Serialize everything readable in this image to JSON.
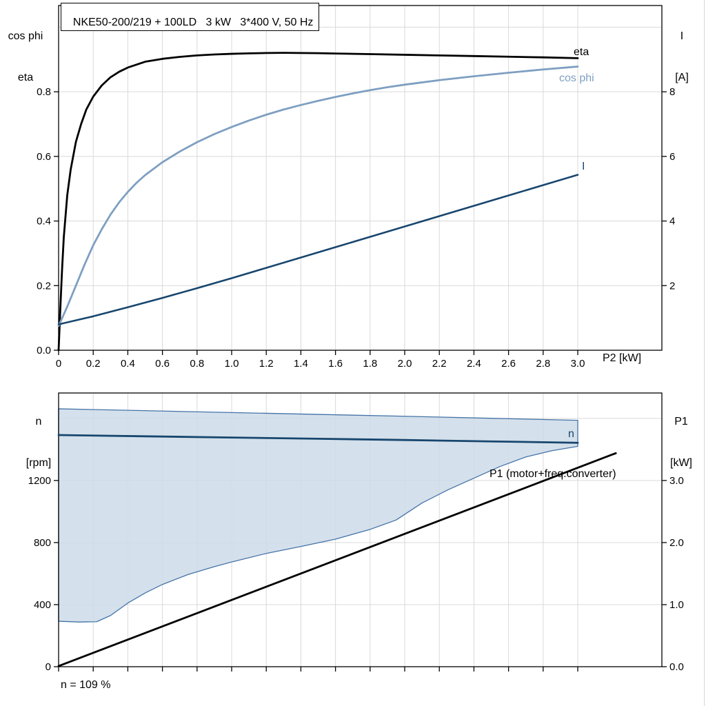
{
  "accent_colors": {
    "dark_blue": "#17466e",
    "light_blue": "#7e9fc1",
    "band_fill": "rgba(204,218,232,0.85)",
    "band_stroke": "#4472a8",
    "grid": "#d9d9d9"
  },
  "chart_data": [
    {
      "type": "line",
      "title": "NKE50-200/219 + 100LD   3 kW   3*400 V, 50 Hz",
      "xlabel": "P2 [kW]",
      "x_axis": {
        "min": 0,
        "max": 3.486,
        "ticks": [
          0,
          0.2,
          0.4,
          0.6,
          0.8,
          1,
          1.2,
          1.4,
          1.6,
          1.8,
          2,
          2.2,
          2.4,
          2.6,
          2.8,
          3
        ],
        "tick_labels": [
          "0",
          "0.2",
          "0.4",
          "0.6",
          "0.8",
          "1.0",
          "1.2",
          "1.4",
          "1.6",
          "1.8",
          "2.0",
          "2.2",
          "2.4",
          "2.6",
          "2.8",
          "3.0"
        ]
      },
      "y_left": {
        "label_line1": "cos phi",
        "label_line2": "eta",
        "min": 0,
        "max": 1.067,
        "ticks": [
          0,
          0.2,
          0.4,
          0.6,
          0.8
        ],
        "tick_labels": [
          "0.0",
          "0.2",
          "0.4",
          "0.6",
          "0.8"
        ],
        "grid_ticks": [
          0.2,
          0.4,
          0.6,
          0.8,
          1.0
        ]
      },
      "y_right": {
        "label_line1": "I",
        "label_line2": "[A]",
        "min": 0,
        "max": 10.67,
        "ticks": [
          2,
          4,
          6,
          8
        ],
        "tick_labels": [
          "2",
          "4",
          "6",
          "8"
        ]
      },
      "series": [
        {
          "name": "eta",
          "label": "eta",
          "axis": "left",
          "color": "#000000",
          "width": 2.8,
          "points": [
            [
              0,
              0
            ],
            [
              0.01,
              0.13
            ],
            [
              0.02,
              0.25
            ],
            [
              0.03,
              0.35
            ],
            [
              0.05,
              0.48
            ],
            [
              0.07,
              0.56
            ],
            [
              0.1,
              0.645
            ],
            [
              0.13,
              0.7
            ],
            [
              0.16,
              0.745
            ],
            [
              0.2,
              0.785
            ],
            [
              0.25,
              0.82
            ],
            [
              0.3,
              0.845
            ],
            [
              0.35,
              0.862
            ],
            [
              0.4,
              0.875
            ],
            [
              0.5,
              0.893
            ],
            [
              0.6,
              0.902
            ],
            [
              0.7,
              0.908
            ],
            [
              0.8,
              0.9125
            ],
            [
              0.9,
              0.9155
            ],
            [
              1.0,
              0.9175
            ],
            [
              1.1,
              0.919
            ],
            [
              1.2,
              0.92
            ],
            [
              1.3,
              0.9205
            ],
            [
              1.4,
              0.92
            ],
            [
              1.5,
              0.9195
            ],
            [
              1.6,
              0.9185
            ],
            [
              1.8,
              0.9165
            ],
            [
              2.0,
              0.9145
            ],
            [
              2.2,
              0.9125
            ],
            [
              2.4,
              0.9105
            ],
            [
              2.6,
              0.9085
            ],
            [
              2.8,
              0.9065
            ],
            [
              3.0,
              0.904
            ]
          ]
        },
        {
          "name": "cos-phi",
          "label": "cos phi",
          "axis": "left",
          "color": "#7e9fc1",
          "width": 2.8,
          "points": [
            [
              0,
              0.075
            ],
            [
              0.05,
              0.135
            ],
            [
              0.1,
              0.2
            ],
            [
              0.15,
              0.265
            ],
            [
              0.2,
              0.325
            ],
            [
              0.25,
              0.375
            ],
            [
              0.3,
              0.42
            ],
            [
              0.35,
              0.458
            ],
            [
              0.4,
              0.49
            ],
            [
              0.45,
              0.518
            ],
            [
              0.5,
              0.542
            ],
            [
              0.6,
              0.582
            ],
            [
              0.7,
              0.615
            ],
            [
              0.8,
              0.644
            ],
            [
              0.9,
              0.669
            ],
            [
              1.0,
              0.691
            ],
            [
              1.1,
              0.711
            ],
            [
              1.2,
              0.729
            ],
            [
              1.3,
              0.745
            ],
            [
              1.4,
              0.759
            ],
            [
              1.5,
              0.772
            ],
            [
              1.6,
              0.784
            ],
            [
              1.7,
              0.795
            ],
            [
              1.8,
              0.805
            ],
            [
              1.9,
              0.814
            ],
            [
              2.0,
              0.822
            ],
            [
              2.2,
              0.836
            ],
            [
              2.4,
              0.848
            ],
            [
              2.6,
              0.859
            ],
            [
              2.8,
              0.869
            ],
            [
              3.0,
              0.878
            ]
          ]
        },
        {
          "name": "current",
          "label": "I",
          "axis": "right",
          "color": "#17466e",
          "width": 2.6,
          "points": [
            [
              0,
              0.8
            ],
            [
              0.2,
              1.05
            ],
            [
              0.4,
              1.33
            ],
            [
              0.6,
              1.62
            ],
            [
              0.8,
              1.92
            ],
            [
              1.0,
              2.23
            ],
            [
              1.2,
              2.55
            ],
            [
              1.4,
              2.87
            ],
            [
              1.6,
              3.19
            ],
            [
              1.8,
              3.51
            ],
            [
              2.0,
              3.83
            ],
            [
              2.2,
              4.15
            ],
            [
              2.4,
              4.47
            ],
            [
              2.6,
              4.79
            ],
            [
              2.8,
              5.11
            ],
            [
              3.0,
              5.43
            ]
          ]
        }
      ]
    },
    {
      "type": "line",
      "xlabel": "",
      "x_axis": {
        "min": 0,
        "max": 3.486,
        "ticks": [
          0,
          0.2,
          0.4,
          0.6,
          0.8,
          1,
          1.2,
          1.4,
          1.6,
          1.8,
          2,
          2.2,
          2.4,
          2.6,
          2.8,
          3
        ],
        "tick_labels": []
      },
      "y_left": {
        "label_line1": "n",
        "label_line2": "[rpm]",
        "min": 0,
        "max": 1764,
        "ticks": [
          0,
          400,
          800,
          1200
        ],
        "tick_labels": [
          "0",
          "400",
          "800",
          "1200"
        ],
        "grid_ticks": [
          400,
          800,
          1200,
          1600
        ]
      },
      "y_right": {
        "label_line1": "P1",
        "label_line2": "[kW]",
        "min": 0,
        "max": 4.41,
        "ticks": [
          0,
          1,
          2,
          3
        ],
        "tick_labels": [
          "0.0",
          "1.0",
          "2.0",
          "3.0"
        ]
      },
      "band": {
        "name": "speed-control-range",
        "fill": "rgba(204,218,232,0.85)",
        "stroke": "#4472a8",
        "upper": [
          [
            0,
            1662
          ],
          [
            0.5,
            1650
          ],
          [
            1.0,
            1638
          ],
          [
            1.5,
            1626
          ],
          [
            2.0,
            1614
          ],
          [
            2.5,
            1601
          ],
          [
            3.0,
            1588
          ]
        ],
        "lower": [
          [
            0,
            293
          ],
          [
            0.12,
            288
          ],
          [
            0.22,
            290
          ],
          [
            0.3,
            330
          ],
          [
            0.4,
            410
          ],
          [
            0.5,
            475
          ],
          [
            0.6,
            530
          ],
          [
            0.75,
            595
          ],
          [
            0.9,
            645
          ],
          [
            1.0,
            675
          ],
          [
            1.2,
            730
          ],
          [
            1.4,
            775
          ],
          [
            1.6,
            822
          ],
          [
            1.8,
            885
          ],
          [
            1.95,
            945
          ],
          [
            2.1,
            1055
          ],
          [
            2.25,
            1140
          ],
          [
            2.4,
            1215
          ],
          [
            2.55,
            1290
          ],
          [
            2.7,
            1352
          ],
          [
            2.85,
            1392
          ],
          [
            3.0,
            1420
          ]
        ]
      },
      "series": [
        {
          "name": "speed",
          "label": "n",
          "axis": "left",
          "color": "#17466e",
          "width": 2.8,
          "points": [
            [
              0,
              1493
            ],
            [
              0.5,
              1485
            ],
            [
              1.0,
              1477
            ],
            [
              1.5,
              1469
            ],
            [
              2.0,
              1461
            ],
            [
              2.5,
              1452
            ],
            [
              3.0,
              1443
            ]
          ]
        },
        {
          "name": "p1-input-power",
          "label": "P1 (motor+freq.converter)",
          "axis": "right",
          "color": "#000000",
          "width": 2.8,
          "points": [
            [
              0,
              0.01
            ],
            [
              3.22,
              3.44
            ]
          ]
        }
      ],
      "annotation": "n = 109 %"
    }
  ]
}
